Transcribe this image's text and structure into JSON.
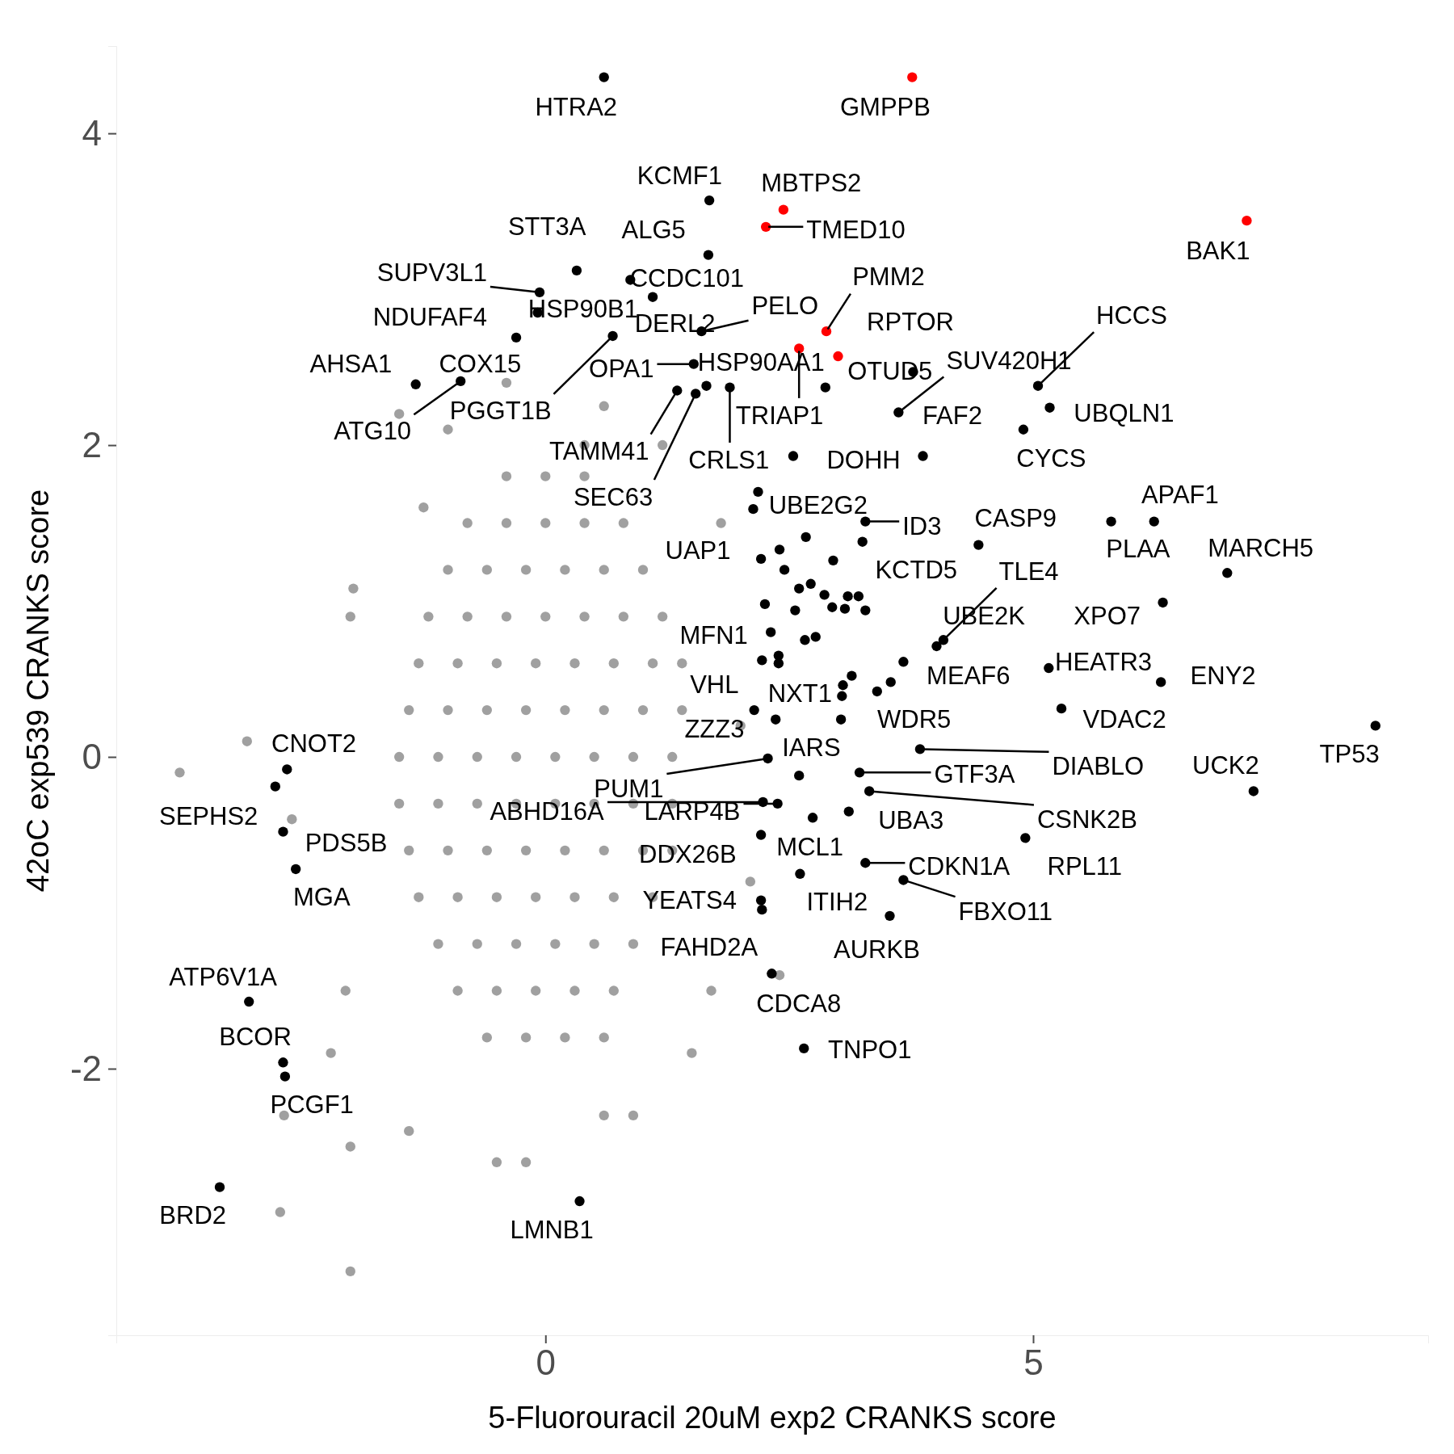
{
  "chart_data": {
    "type": "scatter",
    "xlabel": "5-Fluorouracil 20uM exp2 CRANKS score",
    "ylabel": "42oC exp539 CRANKS score",
    "xlim": [
      -4.4,
      9.05
    ],
    "ylim": [
      -3.71,
      4.56
    ],
    "xticks": [
      0,
      5
    ],
    "yticks": [
      -2,
      0,
      2,
      4
    ],
    "grid": false,
    "marker": "circle",
    "series": [
      {
        "color": "#a0a0a0",
        "x": [
          -0.4,
          0,
          0.4,
          -0.8,
          -0.4,
          0,
          0.4,
          0.8,
          -1.0,
          -0.6,
          -0.2,
          0.2,
          0.6,
          1.0,
          -1.2,
          -0.8,
          -0.4,
          0,
          0.4,
          0.8,
          1.2,
          -1.3,
          -0.9,
          -0.5,
          -0.1,
          0.3,
          0.7,
          1.1,
          1.4,
          -1.4,
          -1.0,
          -0.6,
          -0.2,
          0.2,
          0.6,
          1.0,
          1.4,
          -1.5,
          -1.1,
          -0.7,
          -0.3,
          0.1,
          0.5,
          0.9,
          1.3,
          -1.5,
          -1.1,
          -0.7,
          -0.3,
          0.1,
          0.5,
          0.9,
          1.3,
          -1.4,
          -1.0,
          -0.6,
          -0.2,
          0.2,
          0.6,
          1.0,
          1.3,
          -1.3,
          -0.9,
          -0.5,
          -0.1,
          0.3,
          0.7,
          1.1,
          -1.1,
          -0.7,
          -0.3,
          0.1,
          0.5,
          0.9,
          -0.9,
          -0.5,
          -0.1,
          0.3,
          0.7,
          -0.6,
          -0.2,
          0.2,
          0.6,
          -3.75,
          -3.06,
          -1.97,
          -2.0,
          -2.6,
          -2.05,
          -2.2,
          -2.68,
          -2.72,
          -2.0,
          -2.0,
          -1.4,
          -0.5,
          -0.2,
          0.6,
          0.9,
          1.5,
          2.4,
          1.7,
          -1.25,
          -1.5,
          -1.0,
          -0.4,
          0.6,
          0.4,
          1.2,
          1.8,
          2.0,
          2.1
        ],
        "values": [
          1.8,
          1.8,
          1.8,
          1.5,
          1.5,
          1.5,
          1.5,
          1.5,
          1.2,
          1.2,
          1.2,
          1.2,
          1.2,
          1.2,
          0.9,
          0.9,
          0.9,
          0.9,
          0.9,
          0.9,
          0.9,
          0.6,
          0.6,
          0.6,
          0.6,
          0.6,
          0.6,
          0.6,
          0.6,
          0.3,
          0.3,
          0.3,
          0.3,
          0.3,
          0.3,
          0.3,
          0.3,
          0,
          0,
          0,
          0,
          0,
          0,
          0,
          0,
          -0.3,
          -0.3,
          -0.3,
          -0.3,
          -0.3,
          -0.3,
          -0.3,
          -0.3,
          -0.6,
          -0.6,
          -0.6,
          -0.6,
          -0.6,
          -0.6,
          -0.6,
          -0.6,
          -0.9,
          -0.9,
          -0.9,
          -0.9,
          -0.9,
          -0.9,
          -0.9,
          -1.2,
          -1.2,
          -1.2,
          -1.2,
          -1.2,
          -1.2,
          -1.5,
          -1.5,
          -1.5,
          -1.5,
          -1.5,
          -1.8,
          -1.8,
          -1.8,
          -1.8,
          -0.1,
          0.1,
          1.08,
          0.9,
          -0.4,
          -1.5,
          -1.9,
          -2.3,
          -2.92,
          -3.3,
          -2.5,
          -2.4,
          -2.6,
          -2.6,
          -2.3,
          -2.3,
          -1.9,
          -1.4,
          -1.5,
          1.6,
          2.2,
          2.1,
          2.4,
          2.25,
          2.0,
          2.0,
          1.5,
          0.2,
          -0.8
        ]
      },
      {
        "color": "#000000",
        "x": [
          0.6,
          1.68,
          1.67,
          0.32,
          -0.06,
          0.87,
          1.1,
          -0.08,
          -0.3,
          0.69,
          1.6,
          -1.33,
          -0.87,
          1.52,
          1.35,
          1.54,
          1.65,
          1.89,
          2.87,
          3.77,
          3.62,
          5.05,
          5.17,
          4.9,
          2.54,
          3.87,
          2.18,
          2.13,
          3.28,
          3.25,
          2.67,
          2.4,
          2.21,
          4.44,
          5.8,
          6.24,
          6.99,
          2.95,
          2.45,
          2.6,
          2.72,
          2.86,
          3.1,
          3.21,
          2.94,
          3.07,
          3.28,
          2.56,
          2.25,
          6.33,
          2.31,
          2.66,
          2.77,
          4.08,
          4.01,
          2.22,
          2.39,
          2.39,
          3.67,
          3.54,
          3.14,
          3.05,
          3.04,
          3.4,
          5.16,
          6.31,
          5.29,
          2.14,
          2.36,
          3.03,
          8.51,
          3.84,
          2.28,
          2.6,
          3.22,
          3.32,
          7.26,
          2.23,
          2.38,
          2.74,
          3.11,
          4.92,
          2.21,
          3.28,
          2.61,
          3.67,
          2.21,
          2.22,
          3.53,
          2.32,
          2.65,
          0.35,
          -2.65,
          -2.77,
          -2.69,
          -2.56,
          -3.04,
          -2.69,
          -2.67,
          -3.34
        ],
        "values": [
          4.36,
          3.57,
          3.22,
          3.12,
          2.98,
          3.06,
          2.95,
          2.85,
          2.69,
          2.7,
          2.73,
          2.39,
          2.41,
          2.52,
          2.35,
          2.33,
          2.38,
          2.37,
          2.37,
          2.47,
          2.21,
          2.38,
          2.24,
          2.1,
          1.93,
          1.93,
          1.7,
          1.59,
          1.51,
          1.38,
          1.41,
          1.33,
          1.27,
          1.36,
          1.51,
          1.51,
          1.18,
          1.26,
          1.2,
          1.08,
          1.11,
          1.04,
          1.03,
          1.03,
          0.96,
          0.95,
          0.94,
          0.94,
          0.98,
          0.99,
          0.8,
          0.75,
          0.77,
          0.75,
          0.71,
          0.62,
          0.65,
          0.6,
          0.61,
          0.48,
          0.52,
          0.46,
          0.39,
          0.42,
          0.57,
          0.48,
          0.31,
          0.3,
          0.24,
          0.24,
          0.2,
          0.05,
          -0.01,
          -0.12,
          -0.1,
          -0.22,
          -0.22,
          -0.29,
          -0.3,
          -0.39,
          -0.35,
          -0.52,
          -0.5,
          -0.68,
          -0.75,
          -0.79,
          -0.92,
          -0.98,
          -1.02,
          -1.39,
          -1.87,
          -2.85,
          -0.08,
          -0.19,
          -0.48,
          -0.72,
          -1.57,
          -1.96,
          -2.05,
          -2.76
        ]
      },
      {
        "color": "#ff0000",
        "x": [
          3.76,
          2.44,
          2.26,
          7.19,
          2.88,
          2.6,
          3.0
        ],
        "values": [
          4.36,
          3.51,
          3.4,
          3.44,
          2.73,
          2.62,
          2.57
        ]
      }
    ],
    "annotations": [
      {
        "text": "HTRA2",
        "x": 0.6,
        "y": 4.36
      },
      {
        "text": "GMPPB",
        "x": 3.76,
        "y": 4.36
      },
      {
        "text": "KCMF1",
        "x": 1.68,
        "y": 3.57
      },
      {
        "text": "MBTPS2",
        "x": 2.44,
        "y": 3.51
      },
      {
        "text": "STT3A",
        "x": 0.32,
        "y": 3.12
      },
      {
        "text": "ALG5",
        "x": 1.67,
        "y": 3.22
      },
      {
        "text": "TMED10",
        "x": 2.26,
        "y": 3.4
      },
      {
        "text": "BAK1",
        "x": 7.19,
        "y": 3.44
      },
      {
        "text": "SUPV3L1",
        "x": -0.06,
        "y": 2.98
      },
      {
        "text": "CCDC101",
        "x": 0.87,
        "y": 3.06
      },
      {
        "text": "PMM2",
        "x": 2.88,
        "y": 2.73
      },
      {
        "text": "NDUFAF4",
        "x": -0.3,
        "y": 2.69
      },
      {
        "text": "HSP90B1",
        "x": -0.08,
        "y": 2.85
      },
      {
        "text": "PELO",
        "x": 1.6,
        "y": 2.73
      },
      {
        "text": "DERL2",
        "x": 1.1,
        "y": 2.95
      },
      {
        "text": "RPTOR",
        "x": 3.0,
        "y": 2.57
      },
      {
        "text": "HCCS",
        "x": 5.05,
        "y": 2.38
      },
      {
        "text": "AHSA1",
        "x": -1.33,
        "y": 2.39
      },
      {
        "text": "COX15",
        "x": -0.87,
        "y": 2.41
      },
      {
        "text": "OPA1",
        "x": 1.52,
        "y": 2.52
      },
      {
        "text": "HSP90AA1",
        "x": 1.65,
        "y": 2.38
      },
      {
        "text": "OTUD5",
        "x": 3.77,
        "y": 2.47
      },
      {
        "text": "SUV420H1",
        "x": 3.62,
        "y": 2.21
      },
      {
        "text": "PGGT1B",
        "x": 0.69,
        "y": 2.7
      },
      {
        "text": "ATG10",
        "x": -0.87,
        "y": 2.41
      },
      {
        "text": "TRIAP1",
        "x": 2.6,
        "y": 2.62
      },
      {
        "text": "FAF2",
        "x": 3.62,
        "y": 2.21
      },
      {
        "text": "UBQLN1",
        "x": 5.17,
        "y": 2.24
      },
      {
        "text": "TAMM41",
        "x": 1.35,
        "y": 2.35
      },
      {
        "text": "CRLS1",
        "x": 1.89,
        "y": 2.37
      },
      {
        "text": "DOHH",
        "x": 3.87,
        "y": 1.93
      },
      {
        "text": "CYCS",
        "x": 4.9,
        "y": 2.1
      },
      {
        "text": "SEC63",
        "x": 1.54,
        "y": 2.33
      },
      {
        "text": "APAF1",
        "x": 6.24,
        "y": 1.51
      },
      {
        "text": "UBE2G2",
        "x": 2.13,
        "y": 1.59
      },
      {
        "text": "CASP9",
        "x": 4.44,
        "y": 1.36
      },
      {
        "text": "ID3",
        "x": 3.28,
        "y": 1.51
      },
      {
        "text": "UAP1",
        "x": 2.21,
        "y": 1.27
      },
      {
        "text": "PLAA",
        "x": 5.8,
        "y": 1.51
      },
      {
        "text": "MARCH5",
        "x": 6.99,
        "y": 1.18
      },
      {
        "text": "KCTD5",
        "x": 3.25,
        "y": 1.38
      },
      {
        "text": "TLE4",
        "x": 4.08,
        "y": 0.75
      },
      {
        "text": "UBE2K",
        "x": 4.01,
        "y": 0.71
      },
      {
        "text": "XPO7",
        "x": 6.33,
        "y": 0.99
      },
      {
        "text": "MFN1",
        "x": 2.22,
        "y": 0.62
      },
      {
        "text": "HEATR3",
        "x": 5.16,
        "y": 0.57
      },
      {
        "text": "MEAF6",
        "x": 3.67,
        "y": 0.61
      },
      {
        "text": "ENY2",
        "x": 6.31,
        "y": 0.48
      },
      {
        "text": "VHL",
        "x": 2.14,
        "y": 0.3
      },
      {
        "text": "NXT1",
        "x": 2.39,
        "y": 0.6
      },
      {
        "text": "WDR5",
        "x": 3.4,
        "y": 0.42
      },
      {
        "text": "VDAC2",
        "x": 5.29,
        "y": 0.31
      },
      {
        "text": "ZZZ3",
        "x": 2.36,
        "y": 0.24
      },
      {
        "text": "IARS",
        "x": 3.03,
        "y": 0.24
      },
      {
        "text": "CNOT2",
        "x": -2.65,
        "y": -0.08
      },
      {
        "text": "TP53",
        "x": 8.51,
        "y": 0.2
      },
      {
        "text": "PUM1",
        "x": 2.28,
        "y": -0.01
      },
      {
        "text": "DIABLO",
        "x": 3.84,
        "y": 0.05
      },
      {
        "text": "UCK2",
        "x": 7.26,
        "y": -0.22
      },
      {
        "text": "GTF3A",
        "x": 3.22,
        "y": -0.1
      },
      {
        "text": "SEPHS2",
        "x": -2.77,
        "y": -0.19
      },
      {
        "text": "ABHD16A",
        "x": 2.23,
        "y": -0.29
      },
      {
        "text": "LARP4B",
        "x": 2.38,
        "y": -0.3
      },
      {
        "text": "CSNK2B",
        "x": 3.32,
        "y": -0.22
      },
      {
        "text": "UBA3",
        "x": 3.11,
        "y": -0.35
      },
      {
        "text": "PDS5B",
        "x": -2.69,
        "y": -0.48
      },
      {
        "text": "MCL1",
        "x": 2.74,
        "y": -0.39
      },
      {
        "text": "DDX26B",
        "x": 2.21,
        "y": -0.5
      },
      {
        "text": "CDKN1A",
        "x": 3.28,
        "y": -0.68
      },
      {
        "text": "RPL11",
        "x": 4.92,
        "y": -0.52
      },
      {
        "text": "MGA",
        "x": -2.56,
        "y": -0.72
      },
      {
        "text": "YEATS4",
        "x": 2.21,
        "y": -0.92
      },
      {
        "text": "ITIH2",
        "x": 2.61,
        "y": -0.75
      },
      {
        "text": "FBXO11",
        "x": 3.67,
        "y": -0.79
      },
      {
        "text": "FAHD2A",
        "x": 2.22,
        "y": -0.98
      },
      {
        "text": "AURKB",
        "x": 3.53,
        "y": -1.02
      },
      {
        "text": "ATP6V1A",
        "x": -3.04,
        "y": -1.57
      },
      {
        "text": "CDCA8",
        "x": 2.32,
        "y": -1.39
      },
      {
        "text": "BCOR",
        "x": -2.69,
        "y": -1.96
      },
      {
        "text": "TNPO1",
        "x": 2.65,
        "y": -1.87
      },
      {
        "text": "PCGF1",
        "x": -2.67,
        "y": -2.05
      },
      {
        "text": "BRD2",
        "x": -3.34,
        "y": -2.76
      },
      {
        "text": "LMNB1",
        "x": 0.35,
        "y": -2.85
      }
    ]
  }
}
